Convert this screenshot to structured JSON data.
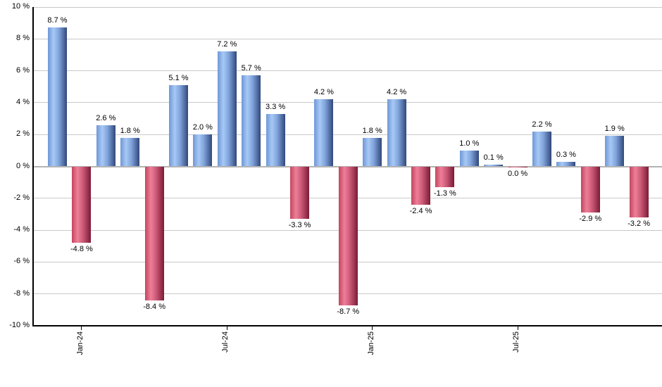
{
  "chart_data": {
    "type": "bar",
    "title": "",
    "xlabel": "",
    "ylabel": "",
    "unit": "%",
    "ylim": [
      -10,
      10
    ],
    "grid": true,
    "legend": null,
    "bars": [
      {
        "value": 8.7,
        "label": "8.7 %"
      },
      {
        "value": -4.8,
        "label": "-4.8 %"
      },
      {
        "value": 2.6,
        "label": "2.6 %"
      },
      {
        "value": 1.8,
        "label": "1.8 %"
      },
      {
        "value": -8.4,
        "label": "-8.4 %"
      },
      {
        "value": 5.1,
        "label": "5.1 %"
      },
      {
        "value": 2.0,
        "label": "2.0 %"
      },
      {
        "value": 7.2,
        "label": "7.2 %"
      },
      {
        "value": 5.7,
        "label": "5.7 %"
      },
      {
        "value": 3.3,
        "label": "3.3 %"
      },
      {
        "value": -3.3,
        "label": "-3.3 %"
      },
      {
        "value": 4.2,
        "label": "4.2 %"
      },
      {
        "value": -8.7,
        "label": "-8.7 %"
      },
      {
        "value": 1.8,
        "label": "1.8 %"
      },
      {
        "value": 4.2,
        "label": "4.2 %"
      },
      {
        "value": -2.4,
        "label": "-2.4 %"
      },
      {
        "value": -1.3,
        "label": "-1.3 %"
      },
      {
        "value": 1.0,
        "label": "1.0 %"
      },
      {
        "value": 0.1,
        "label": "0.1 %"
      },
      {
        "value": 0.0,
        "label": "0.0 %"
      },
      {
        "value": 2.2,
        "label": "2.2 %"
      },
      {
        "value": 0.3,
        "label": "0.3 %"
      },
      {
        "value": -2.9,
        "label": "-2.9 %"
      },
      {
        "value": 1.9,
        "label": "1.9 %"
      },
      {
        "value": -3.2,
        "label": "-3.2 %"
      }
    ],
    "x_ticks": [
      {
        "bar_index": 1,
        "label": "Jan-24"
      },
      {
        "bar_index": 7,
        "label": "Jul-24"
      },
      {
        "bar_index": 13,
        "label": "Jan-25"
      },
      {
        "bar_index": 19,
        "label": "Jul-25"
      }
    ],
    "y_ticks": [
      {
        "value": 10,
        "label": "10 %"
      },
      {
        "value": 8,
        "label": "8 %"
      },
      {
        "value": 6,
        "label": "6 %"
      },
      {
        "value": 4,
        "label": "4 %"
      },
      {
        "value": 2,
        "label": "2 %"
      },
      {
        "value": 0,
        "label": "0 %"
      },
      {
        "value": -2,
        "label": "-2 %"
      },
      {
        "value": -4,
        "label": "-4 %"
      },
      {
        "value": -6,
        "label": "-6 %"
      },
      {
        "value": -8,
        "label": "-8 %"
      },
      {
        "value": -10,
        "label": "-10 %"
      }
    ],
    "colors": {
      "positive_gradient": [
        "#6e97d6",
        "#a8c9f5",
        "#7fa3db",
        "#31487a"
      ],
      "negative_gradient": [
        "#c24560",
        "#ee7f98",
        "#cc5a78",
        "#7a1b36"
      ],
      "gridline": "#c9c9c9",
      "zero_line": "#b3b3b3",
      "axis": "#000000",
      "text": "#000000",
      "background": "#ffffff"
    }
  }
}
